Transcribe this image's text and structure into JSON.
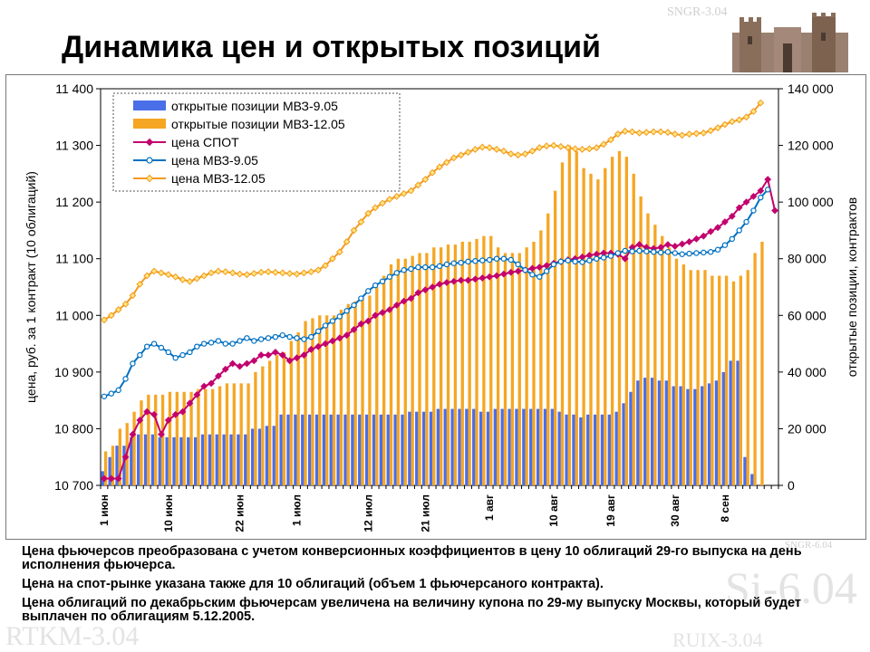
{
  "title": "Динамика цен и открытых позиций",
  "background_marks": [
    "SNGR-3.04",
    "SNGR-6.04",
    "Si-6.04",
    "RTKM-3.04",
    "RUIX-3.04"
  ],
  "notes": [
    "Цена фьючерсов преобразована с учетом конверсионных коэффициентов в цену 10 облигаций 29-го выпуска на день исполнения фьючерса.",
    "Цена на спот-рынке указана также для 10 облигаций (объем 1 фьючерсаного контракта).",
    "Цена облигаций по декабрьским фьючерсам увеличена на величину купона по 29-му выпуску Москвы, который будет выплачен по облигациям 5.12.2005."
  ],
  "chart_data": {
    "type": "bar+line",
    "ylabel": "цена, руб. за 1 контракт (10 облигаций)",
    "y2label": "открытые позиции, контрактов",
    "ylim": [
      10700,
      11400
    ],
    "y_ticks": [
      "10 700",
      "10 800",
      "10 900",
      "11 000",
      "11 100",
      "11 200",
      "11 300",
      "11 400"
    ],
    "y2lim": [
      0,
      140000
    ],
    "y2_ticks": [
      "0",
      "20 000",
      "40 000",
      "60 000",
      "80 000",
      "100 000",
      "120 000",
      "140 000"
    ],
    "x_tick_labels": [
      {
        "index": 0,
        "label": "1 июн"
      },
      {
        "index": 9,
        "label": "10 июн"
      },
      {
        "index": 19,
        "label": "22 июн"
      },
      {
        "index": 27,
        "label": "1 июл"
      },
      {
        "index": 37,
        "label": "12 июл"
      },
      {
        "index": 45,
        "label": "21 июл"
      },
      {
        "index": 54,
        "label": "1 авг"
      },
      {
        "index": 63,
        "label": "10 авг"
      },
      {
        "index": 71,
        "label": "19 авг"
      },
      {
        "index": 80,
        "label": "30 авг"
      },
      {
        "index": 87,
        "label": "8 сен"
      }
    ],
    "grid": false,
    "legend": "top-left",
    "series": [
      {
        "name": "открытые позиции МВЗ-9.05",
        "kind": "bar",
        "axis": "right",
        "color": "#4a6ee8",
        "values": [
          5000,
          10000,
          14000,
          14000,
          17000,
          18000,
          18000,
          18000,
          17000,
          17000,
          17000,
          17000,
          17000,
          17000,
          18000,
          18000,
          18000,
          18000,
          18000,
          18000,
          18000,
          20000,
          20000,
          21000,
          21000,
          25000,
          25000,
          25000,
          25000,
          25000,
          25000,
          25000,
          25000,
          25000,
          25000,
          25000,
          25000,
          25000,
          25000,
          25000,
          25000,
          25000,
          25000,
          26000,
          26000,
          26000,
          26000,
          27000,
          27000,
          27000,
          27000,
          27000,
          27000,
          26000,
          26000,
          27000,
          27000,
          27000,
          27000,
          27000,
          27000,
          27000,
          27000,
          27000,
          26000,
          25000,
          25000,
          24000,
          25000,
          25000,
          25000,
          25000,
          26000,
          29000,
          33000,
          37000,
          38000,
          38000,
          37000,
          37000,
          35000,
          35000,
          34000,
          34000,
          35000,
          36000,
          37000,
          40000,
          44000,
          44000,
          10000,
          4000
        ]
      },
      {
        "name": "открытые позиции МВЗ-12.05",
        "kind": "bar",
        "axis": "right",
        "color": "#f5a623",
        "values": [
          12000,
          14000,
          20000,
          22000,
          26000,
          30000,
          32000,
          32000,
          32000,
          33000,
          33000,
          33000,
          33000,
          34000,
          34000,
          34000,
          35000,
          36000,
          36000,
          36000,
          36000,
          40000,
          42000,
          44000,
          46000,
          47000,
          51000,
          54000,
          58000,
          59000,
          60000,
          60000,
          60000,
          62000,
          64000,
          65000,
          66000,
          67000,
          70000,
          74000,
          78000,
          80000,
          80000,
          81000,
          82000,
          82000,
          84000,
          84000,
          85000,
          85000,
          86000,
          86000,
          87000,
          88000,
          88000,
          84000,
          82000,
          82000,
          82000,
          84000,
          86000,
          90000,
          96000,
          104000,
          114000,
          120000,
          118000,
          112000,
          110000,
          108000,
          112000,
          116000,
          118000,
          116000,
          110000,
          102000,
          96000,
          92000,
          88000,
          84000,
          80000,
          78000,
          76000,
          76000,
          76000,
          74000,
          74000,
          74000,
          72000,
          74000,
          76000,
          82000,
          86000
        ]
      },
      {
        "name": "цена СПОТ",
        "kind": "line",
        "axis": "left",
        "color": "#c2006e",
        "marker": "diamond",
        "values": [
          10712,
          10712,
          10712,
          10750,
          10790,
          10815,
          10830,
          10825,
          10790,
          10815,
          10825,
          10830,
          10845,
          10860,
          10875,
          10880,
          10893,
          10905,
          10915,
          10910,
          10915,
          10920,
          10930,
          10930,
          10935,
          10930,
          10920,
          10925,
          10930,
          10940,
          10945,
          10950,
          10955,
          10960,
          10965,
          10975,
          10985,
          10990,
          11000,
          11005,
          11010,
          11018,
          11025,
          11030,
          11040,
          11045,
          11050,
          11055,
          11058,
          11060,
          11062,
          11062,
          11064,
          11066,
          11068,
          11070,
          11073,
          11076,
          11078,
          11080,
          11083,
          11085,
          11088,
          11092,
          11095,
          11098,
          11100,
          11103,
          11106,
          11108,
          11110,
          11110,
          11108,
          11100,
          11120,
          11125,
          11120,
          11118,
          11120,
          11125,
          11122,
          11126,
          11130,
          11135,
          11140,
          11148,
          11155,
          11165,
          11175,
          11190,
          11200,
          11210,
          11220,
          11240,
          11185
        ]
      },
      {
        "name": "цена МВЗ-9.05",
        "kind": "line",
        "axis": "left",
        "color": "#0070c0",
        "marker": "circle",
        "values": [
          10857,
          10862,
          10868,
          10888,
          10915,
          10930,
          10945,
          10950,
          10943,
          10935,
          10925,
          10930,
          10935,
          10945,
          10950,
          10952,
          10955,
          10950,
          10950,
          10955,
          10960,
          10955,
          10958,
          10960,
          10962,
          10965,
          10962,
          10960,
          10958,
          10962,
          10972,
          10982,
          10990,
          10998,
          11008,
          11018,
          11030,
          11043,
          11053,
          11060,
          11068,
          11075,
          11080,
          11082,
          11085,
          11085,
          11085,
          11087,
          11090,
          11092,
          11093,
          11095,
          11096,
          11097,
          11098,
          11100,
          11100,
          11098,
          11090,
          11080,
          11072,
          11068,
          11078,
          11090,
          11095,
          11097,
          11095,
          11094,
          11097,
          11100,
          11102,
          11105,
          11110,
          11114,
          11113,
          11114,
          11113,
          11112,
          11111,
          11112,
          11110,
          11108,
          11109,
          11110,
          11111,
          11112,
          11116,
          11124,
          11135,
          11150,
          11165,
          11185,
          11208,
          11222
        ]
      },
      {
        "name": "цена МВЗ-12.05",
        "kind": "line",
        "axis": "left",
        "color": "#f29a1f",
        "marker": "diamond",
        "values": [
          10992,
          11000,
          11010,
          11020,
          11035,
          11055,
          11070,
          11078,
          11075,
          11072,
          11068,
          11063,
          11060,
          11065,
          11070,
          11075,
          11078,
          11077,
          11075,
          11073,
          11072,
          11074,
          11076,
          11077,
          11076,
          11075,
          11074,
          11073,
          11075,
          11077,
          11080,
          11088,
          11100,
          11112,
          11130,
          11150,
          11165,
          11180,
          11190,
          11198,
          11205,
          11210,
          11215,
          11220,
          11230,
          11240,
          11252,
          11262,
          11270,
          11278,
          11283,
          11288,
          11293,
          11297,
          11296,
          11293,
          11290,
          11285,
          11283,
          11285,
          11290,
          11296,
          11299,
          11300,
          11298,
          11296,
          11294,
          11293,
          11294,
          11296,
          11302,
          11310,
          11320,
          11325,
          11324,
          11322,
          11323,
          11324,
          11324,
          11323,
          11320,
          11318,
          11320,
          11321,
          11322,
          11326,
          11331,
          11337,
          11342,
          11345,
          11350,
          11360,
          11375
        ]
      }
    ]
  }
}
